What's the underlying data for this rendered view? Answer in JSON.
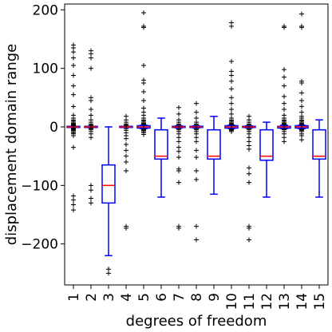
{
  "chart_data": {
    "type": "box",
    "title": "",
    "xlabel": "degrees of freedom",
    "ylabel": "displacement domain range",
    "ylim": [
      -270,
      210
    ],
    "yticks": [
      -200,
      -100,
      0,
      100,
      200
    ],
    "yticklabels": [
      "−200",
      "−100",
      "0",
      "100",
      "200"
    ],
    "grid": false,
    "box_color": "#0000ff",
    "median_color": "#ff0000",
    "flier_marker": "+",
    "categories": [
      "1",
      "2",
      "3",
      "4",
      "5",
      "6",
      "7",
      "8",
      "9",
      "10",
      "11",
      "12",
      "13",
      "14",
      "15"
    ],
    "boxes": [
      {
        "label": "1",
        "q1": -1,
        "median": 0,
        "q3": 1,
        "whisker_low": -1,
        "whisker_high": 1,
        "fliers": [
          140,
          135,
          128,
          118,
          105,
          88,
          70,
          55,
          35,
          20,
          15,
          12,
          10,
          8,
          6,
          5,
          4,
          3,
          2,
          -2,
          -3,
          -4,
          -5,
          -6,
          -8,
          -10,
          -12,
          -15,
          -35,
          -118,
          -125,
          -133,
          -142
        ]
      },
      {
        "label": "2",
        "q1": -1,
        "median": 0,
        "q3": 1,
        "whisker_low": -1,
        "whisker_high": 1,
        "fliers": [
          130,
          125,
          118,
          100,
          50,
          45,
          30,
          20,
          12,
          8,
          5,
          3,
          2,
          -2,
          -3,
          -5,
          -8,
          -12,
          -18,
          -100,
          -108,
          -122,
          -130
        ]
      },
      {
        "label": "3",
        "q1": -130,
        "median": -100,
        "q3": -65,
        "whisker_low": -220,
        "whisker_high": 0,
        "fliers": [
          -243,
          -250
        ]
      },
      {
        "label": "4",
        "q1": -1,
        "median": 0,
        "q3": 1,
        "whisker_low": -1,
        "whisker_high": 1,
        "fliers": [
          18,
          12,
          8,
          5,
          3,
          2,
          -3,
          -6,
          -10,
          -15,
          -20,
          -30,
          -40,
          -50,
          -60,
          -75,
          -170,
          -173
        ]
      },
      {
        "label": "5",
        "q1": -2,
        "median": 0,
        "q3": 2,
        "whisker_low": -3,
        "whisker_high": 3,
        "fliers": [
          195,
          172,
          170,
          105,
          80,
          75,
          60,
          45,
          32,
          25,
          20,
          15,
          12,
          10,
          8,
          6,
          5,
          4,
          -4,
          -5,
          -6,
          -8,
          -10,
          -13
        ]
      },
      {
        "label": "6",
        "q1": -55,
        "median": -50,
        "q3": -5,
        "whisker_low": -120,
        "whisker_high": 15,
        "fliers": []
      },
      {
        "label": "7",
        "q1": -1,
        "median": 0,
        "q3": 1,
        "whisker_low": -2,
        "whisker_high": 2,
        "fliers": [
          33,
          22,
          12,
          8,
          5,
          3,
          -3,
          -5,
          -8,
          -12,
          -18,
          -25,
          -35,
          -42,
          -52,
          -72,
          -75,
          -95,
          -170,
          -173
        ]
      },
      {
        "label": "8",
        "q1": -1,
        "median": 0,
        "q3": 1,
        "whisker_low": -2,
        "whisker_high": 2,
        "fliers": [
          40,
          25,
          15,
          8,
          5,
          3,
          -3,
          -5,
          -8,
          -12,
          -18,
          -25,
          -40,
          -52,
          -75,
          -90,
          -170,
          -193
        ]
      },
      {
        "label": "9",
        "q1": -55,
        "median": -50,
        "q3": -5,
        "whisker_low": -115,
        "whisker_high": 18,
        "fliers": []
      },
      {
        "label": "10",
        "q1": -2,
        "median": 0,
        "q3": 2,
        "whisker_low": -3,
        "whisker_high": 3,
        "fliers": [
          178,
          172,
          112,
          95,
          88,
          78,
          65,
          50,
          40,
          30,
          22,
          15,
          12,
          10,
          8,
          6,
          5,
          4,
          -4,
          -5,
          -6,
          -8
        ]
      },
      {
        "label": "11",
        "q1": -1,
        "median": 0,
        "q3": 1,
        "whisker_low": -2,
        "whisker_high": 2,
        "fliers": [
          18,
          12,
          8,
          5,
          3,
          -3,
          -5,
          -8,
          -12,
          -18,
          -25,
          -32,
          -38,
          -70,
          -80,
          -95,
          -170,
          -173,
          -193
        ]
      },
      {
        "label": "12",
        "q1": -57,
        "median": -50,
        "q3": -5,
        "whisker_low": -120,
        "whisker_high": 8,
        "fliers": []
      },
      {
        "label": "13",
        "q1": -2,
        "median": 0,
        "q3": 1,
        "whisker_low": -3,
        "whisker_high": 3,
        "fliers": [
          172,
          170,
          98,
          85,
          70,
          52,
          40,
          30,
          20,
          15,
          12,
          10,
          8,
          6,
          5,
          4,
          -4,
          -5,
          -8,
          -12,
          -18,
          -25
        ]
      },
      {
        "label": "14",
        "q1": -2,
        "median": 0,
        "q3": 2,
        "whisker_low": -3,
        "whisker_high": 3,
        "fliers": [
          193,
          172,
          170,
          78,
          75,
          58,
          45,
          35,
          25,
          18,
          15,
          12,
          10,
          8,
          6,
          5,
          4,
          -4,
          -5,
          -6,
          -8,
          -12,
          -15,
          -22
        ]
      },
      {
        "label": "15",
        "q1": -55,
        "median": -50,
        "q3": -5,
        "whisker_low": -120,
        "whisker_high": 12,
        "fliers": []
      }
    ]
  }
}
